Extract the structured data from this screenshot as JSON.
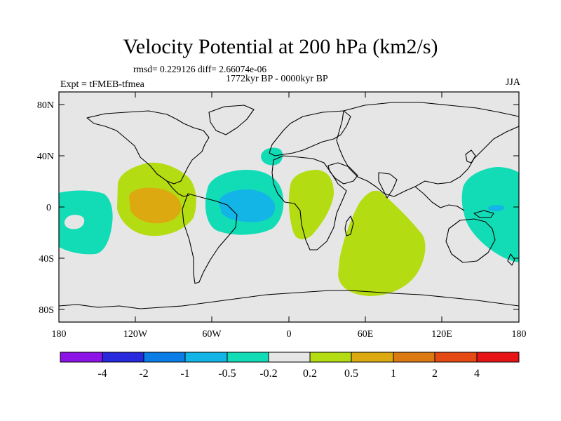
{
  "map": {
    "title": "Velocity Potential at 200 hPa (km2/s)",
    "stats": "rmsd= 0.229126 diff= 2.66074e-06",
    "period": "1772kyr BP - 0000kyr BP",
    "experiment": "Expt = tFMEB-tfmea",
    "season": "JJA",
    "lat_labels": [
      "80N",
      "40N",
      "0",
      "40S",
      "80S"
    ],
    "lon_labels": [
      "180",
      "120W",
      "60W",
      "0",
      "60E",
      "120E",
      "180"
    ],
    "colors": {
      "neutral": "#e6e6e6",
      "coastline": "#000000",
      "neg_0_5": "#12dcb6",
      "neg_1": "#12b5e6",
      "pos_0_2": "#b4dc12",
      "pos_0_5": "#dcaa10"
    }
  },
  "colorbar": {
    "colors": [
      "#8c14e6",
      "#2828dc",
      "#0a7ee6",
      "#12b5e6",
      "#12dcb6",
      "#e6e6e6",
      "#b4dc12",
      "#dcaa10",
      "#dc7a12",
      "#e64a14",
      "#e61414"
    ],
    "labels": [
      "-4",
      "-2",
      "-1",
      "-0.5",
      "-0.2",
      "0.2",
      "0.5",
      "1",
      "2",
      "4"
    ]
  }
}
